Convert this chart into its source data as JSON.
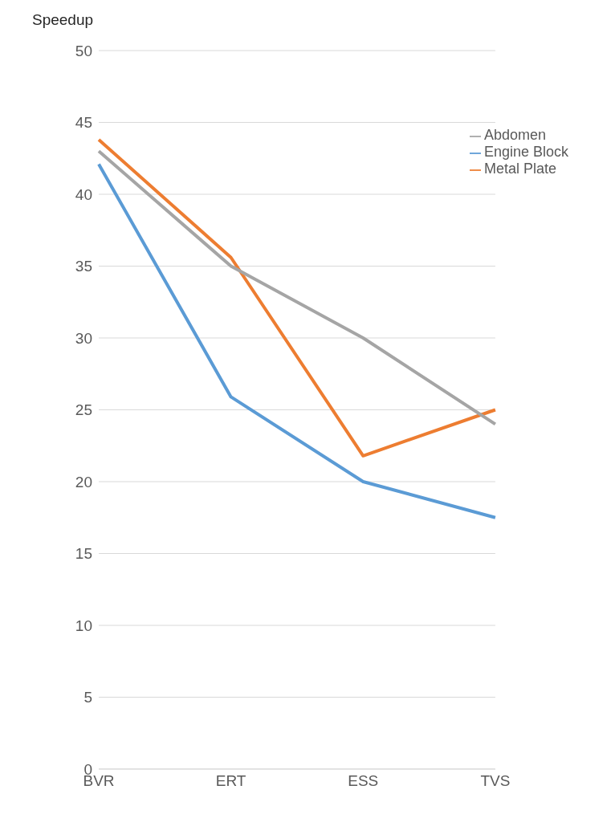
{
  "chart_data": {
    "type": "line",
    "ylabel": "Speedup",
    "categories": [
      "BVR",
      "ERT",
      "ESS",
      "TVS"
    ],
    "series": [
      {
        "name": "Engine Block",
        "color": "#5b9bd5",
        "values": [
          42.1,
          25.9,
          20.0,
          17.5
        ]
      },
      {
        "name": "Metal Plate",
        "color": "#ed7d31",
        "values": [
          43.8,
          35.6,
          21.8,
          25.0
        ]
      },
      {
        "name": "Abdomen",
        "color": "#a5a5a5",
        "values": [
          43.0,
          35.0,
          30.0,
          24.0
        ]
      }
    ],
    "ylim": [
      0,
      50
    ],
    "yticks": [
      0,
      5,
      10,
      15,
      20,
      25,
      30,
      35,
      40,
      45,
      50
    ],
    "grid": "y",
    "legend": "top right",
    "marker": "none",
    "line_style": "solid"
  }
}
